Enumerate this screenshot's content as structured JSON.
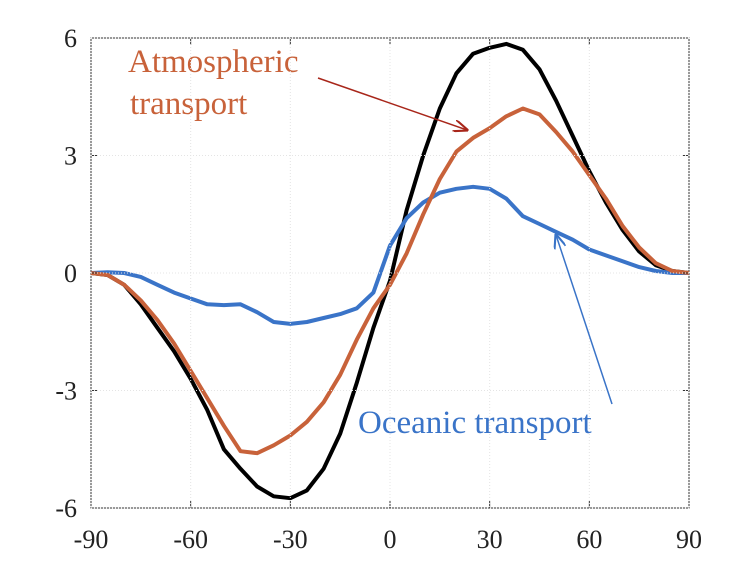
{
  "chart_data": {
    "type": "line",
    "x": [
      -90,
      -85,
      -80,
      -75,
      -70,
      -65,
      -60,
      -55,
      -50,
      -45,
      -40,
      -35,
      -30,
      -25,
      -20,
      -15,
      -10,
      -5,
      0,
      5,
      10,
      15,
      20,
      25,
      30,
      35,
      40,
      45,
      50,
      55,
      60,
      65,
      70,
      75,
      80,
      85,
      90
    ],
    "series": [
      {
        "color": "#000000",
        "values": [
          0,
          -0.05,
          -0.3,
          -0.8,
          -1.4,
          -2.0,
          -2.7,
          -3.5,
          -4.5,
          -5.0,
          -5.45,
          -5.7,
          -5.75,
          -5.55,
          -5.0,
          -4.1,
          -2.8,
          -1.4,
          -0.2,
          1.6,
          3.0,
          4.2,
          5.1,
          5.6,
          5.75,
          5.85,
          5.7,
          5.2,
          4.4,
          3.5,
          2.6,
          1.8,
          1.1,
          0.55,
          0.2,
          0.05,
          0
        ]
      },
      {
        "color": "#c8623a",
        "values": [
          0,
          -0.05,
          -0.3,
          -0.7,
          -1.2,
          -1.8,
          -2.5,
          -3.2,
          -3.9,
          -4.55,
          -4.6,
          -4.4,
          -4.15,
          -3.8,
          -3.3,
          -2.6,
          -1.7,
          -0.9,
          -0.3,
          0.5,
          1.5,
          2.4,
          3.1,
          3.45,
          3.7,
          4.0,
          4.2,
          4.05,
          3.6,
          3.1,
          2.5,
          1.9,
          1.2,
          0.65,
          0.25,
          0.05,
          0
        ]
      },
      {
        "color": "#3a74c8",
        "values": [
          0,
          0.02,
          0,
          -0.1,
          -0.3,
          -0.5,
          -0.65,
          -0.8,
          -0.82,
          -0.8,
          -1.0,
          -1.25,
          -1.3,
          -1.25,
          -1.15,
          -1.05,
          -0.9,
          -0.5,
          0.7,
          1.4,
          1.8,
          2.05,
          2.15,
          2.2,
          2.15,
          1.9,
          1.45,
          1.25,
          1.05,
          0.85,
          0.6,
          0.45,
          0.3,
          0.15,
          0.05,
          0,
          0
        ]
      }
    ],
    "annotations": [
      {
        "text": [
          "Atmospheric",
          "transport"
        ],
        "color": "#c8623a"
      },
      {
        "text": [
          "Oceanic transport"
        ],
        "color": "#3a74c8"
      }
    ],
    "xlim": [
      -90,
      90
    ],
    "xticks": [
      -90,
      -60,
      -30,
      0,
      30,
      60,
      90
    ],
    "ylim": [
      -6,
      6
    ],
    "yticks": [
      -6,
      -3,
      0,
      3,
      6
    ],
    "grid": true
  }
}
